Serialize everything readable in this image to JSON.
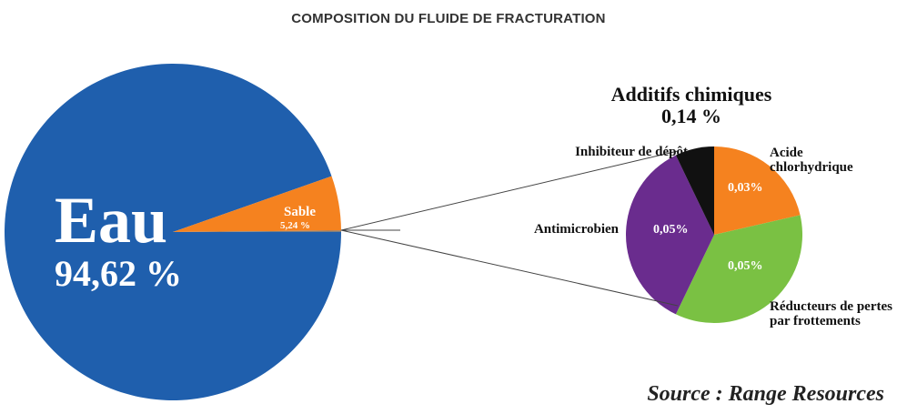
{
  "chart_data": [
    {
      "type": "pie",
      "title": "COMPOSITION DU FLUIDE DE FRACTURATION",
      "annotation": "Source : Range Resources",
      "categories": [
        "Eau",
        "Sable",
        "Additifs chimiques"
      ],
      "values": [
        94.62,
        5.24,
        0.14
      ],
      "value_labels": [
        "94,62 %",
        "5,24 %",
        "0,14 %"
      ],
      "colors": [
        "#1f5fad",
        "#f5821f",
        "#7f7f7f"
      ]
    },
    {
      "type": "pie",
      "categories": [
        "Acide chlorhydrique",
        "Réducteurs de pertes par frottements",
        "Antimicrobien",
        "Inhibiteur de dépôt"
      ],
      "values": [
        0.03,
        0.05,
        0.05,
        0.01
      ],
      "value_labels": [
        "0,03%",
        "0,05%",
        "0,05%",
        null
      ],
      "colors": [
        "#f5821f",
        "#7ac143",
        "#6a2c8e",
        "#111111"
      ]
    }
  ]
}
